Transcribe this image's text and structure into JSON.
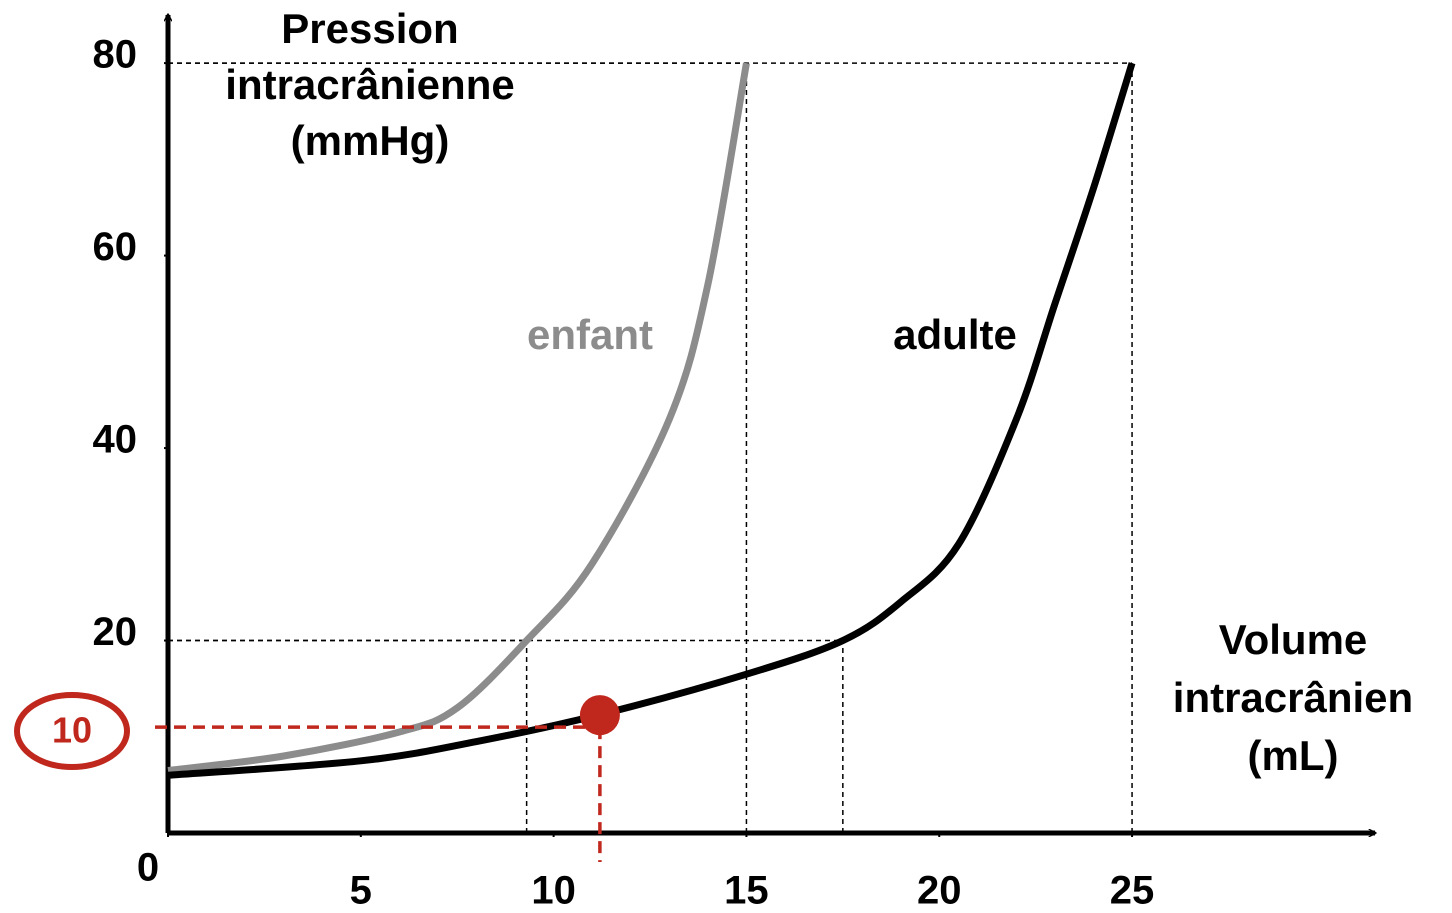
{
  "chart_data": {
    "type": "line",
    "y_label": [
      "Pression",
      "intracrânienne",
      "(mmHg)"
    ],
    "x_label": [
      "Volume",
      "intracrânien",
      "(mL)"
    ],
    "xlim": [
      0,
      31.3
    ],
    "ylim": [
      0,
      85
    ],
    "xticks": [
      0,
      5,
      10,
      15,
      20,
      25
    ],
    "yticks": [
      20,
      40,
      60,
      80
    ],
    "series": [
      {
        "name": "enfant",
        "color": "#8c8c8c",
        "x": [
          0,
          3,
          6,
          7.5,
          9.3,
          11,
          13,
          14,
          15
        ],
        "values": [
          6.5,
          8,
          10.5,
          13,
          20,
          28,
          43,
          57,
          80
        ]
      },
      {
        "name": "adulte",
        "color": "#000000",
        "x": [
          0,
          5,
          8,
          11.2,
          15,
          17.5,
          19,
          20.5,
          22,
          23,
          24,
          25
        ],
        "values": [
          6,
          7.5,
          9.5,
          12.3,
          16.5,
          20,
          24,
          30,
          43,
          55,
          67,
          80
        ]
      }
    ],
    "guides": [
      {
        "x": 25,
        "y": 80
      },
      {
        "x": 15,
        "y": 80
      },
      {
        "x": 9.3,
        "y": 20
      },
      {
        "x": 17.5,
        "y": 20
      }
    ],
    "annotation": {
      "label": "10",
      "x": 11.2,
      "y": 11,
      "color": "#c0281e"
    }
  }
}
